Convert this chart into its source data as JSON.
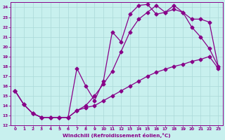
{
  "xlabel": "Windchill (Refroidissement éolien,°C)",
  "ylabel": "",
  "background_color": "#c8f0ee",
  "grid_color": "#aad8d8",
  "line_color": "#880088",
  "marker": "D",
  "markersize": 2.5,
  "linewidth": 0.9,
  "xlim": [
    -0.5,
    23.5
  ],
  "ylim": [
    12,
    24.5
  ],
  "xticks": [
    0,
    1,
    2,
    3,
    4,
    5,
    6,
    7,
    8,
    9,
    10,
    11,
    12,
    13,
    14,
    15,
    16,
    17,
    18,
    19,
    20,
    21,
    22,
    23
  ],
  "yticks": [
    12,
    13,
    14,
    15,
    16,
    17,
    18,
    19,
    20,
    21,
    22,
    23,
    24
  ],
  "line1_x": [
    0,
    1,
    2,
    3,
    4,
    5,
    6,
    7,
    8,
    9,
    10,
    11,
    12,
    13,
    14,
    15,
    16,
    17,
    18,
    19,
    20,
    21,
    22,
    23
  ],
  "line1_y": [
    15.5,
    14.1,
    13.2,
    12.8,
    12.8,
    12.8,
    12.8,
    17.8,
    16.0,
    14.5,
    16.5,
    21.5,
    20.5,
    23.3,
    24.2,
    24.3,
    23.3,
    23.5,
    24.2,
    23.5,
    22.8,
    22.8,
    22.5,
    18.0
  ],
  "line2_x": [
    0,
    1,
    2,
    3,
    4,
    5,
    6,
    7,
    8,
    9,
    10,
    11,
    12,
    13,
    14,
    15,
    16,
    17,
    18,
    19,
    20,
    21,
    22,
    23
  ],
  "line2_y": [
    15.5,
    14.1,
    13.2,
    12.8,
    12.8,
    12.8,
    12.8,
    13.5,
    14.0,
    15.0,
    16.2,
    17.5,
    19.5,
    21.5,
    22.8,
    23.5,
    24.2,
    23.5,
    23.8,
    23.5,
    22.0,
    21.0,
    19.8,
    18.0
  ],
  "line3_x": [
    0,
    1,
    2,
    3,
    4,
    5,
    6,
    7,
    8,
    9,
    10,
    11,
    12,
    13,
    14,
    15,
    16,
    17,
    18,
    19,
    20,
    21,
    22,
    23
  ],
  "line3_y": [
    15.5,
    14.1,
    13.2,
    12.8,
    12.8,
    12.8,
    12.8,
    13.5,
    13.8,
    14.0,
    14.5,
    15.0,
    15.5,
    16.0,
    16.5,
    17.0,
    17.4,
    17.7,
    18.0,
    18.2,
    18.5,
    18.7,
    19.0,
    17.8
  ]
}
